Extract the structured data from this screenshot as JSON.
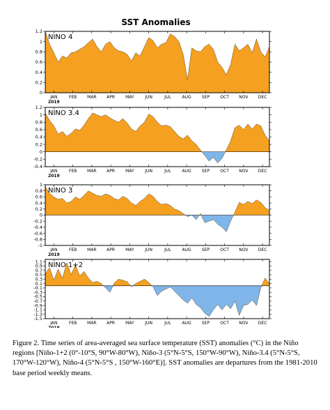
{
  "title": "SST Anomalies",
  "months": [
    "JAN",
    "FEB",
    "MAR",
    "APR",
    "MAY",
    "JUN",
    "JUL",
    "AUG",
    "SEP",
    "OCT",
    "NOV",
    "DEC"
  ],
  "year_label": "2019",
  "colors": {
    "positive": "#f5a020",
    "negative": "#7fb5e8",
    "axis": "#000000"
  },
  "caption": "Figure 2. Time series of area-averaged sea surface temperature (SST) anomalies (°C) in the Niño regions [Niño-1+2 (0°-10°S, 90°W-80°W), Niño-3 (5°N-5°S, 150°W-90°W), Niño-3.4 (5°N-5°S, 170°W-120°W), Niño-4 (5°N-5°S , 150°W-160°E)]. SST anomalies are departures from the 1981-2010 base period weekly means.",
  "chart_data": [
    {
      "type": "area",
      "name": "NINO 4",
      "ylim": [
        0,
        1.2
      ],
      "yticks": [
        0,
        0.2,
        0.4,
        0.6,
        0.8,
        1,
        1.2
      ],
      "x_weeks": [
        0,
        1,
        2,
        3,
        4,
        5,
        6,
        7,
        8,
        9,
        10,
        11,
        12,
        13,
        14,
        15,
        16,
        17,
        18,
        19,
        20,
        21,
        22,
        23,
        24,
        25,
        26,
        27,
        28,
        29,
        30,
        31,
        32,
        33,
        34,
        35,
        36,
        37,
        38,
        39,
        40,
        41,
        42,
        43,
        44,
        45,
        46,
        47,
        48,
        49,
        50,
        51,
        52
      ],
      "values": [
        1.2,
        0.95,
        0.78,
        0.6,
        0.72,
        0.68,
        0.78,
        0.8,
        0.85,
        0.9,
        0.98,
        1.05,
        0.9,
        0.8,
        0.95,
        1.0,
        0.88,
        0.82,
        0.8,
        0.75,
        0.62,
        0.78,
        0.72,
        0.9,
        1.08,
        1.02,
        0.88,
        0.95,
        0.98,
        1.15,
        1.1,
        1.0,
        0.75,
        0.25,
        0.88,
        0.82,
        0.8,
        0.9,
        0.95,
        0.85,
        0.6,
        0.5,
        0.35,
        0.55,
        0.95,
        0.82,
        0.88,
        0.95,
        0.78,
        1.05,
        0.8,
        0.7,
        0.9
      ]
    },
    {
      "type": "area",
      "name": "NINO 3.4",
      "ylim": [
        -0.4,
        1.2
      ],
      "yticks": [
        -0.4,
        -0.2,
        0,
        0.2,
        0.4,
        0.6,
        0.8,
        1,
        1.2
      ],
      "x_weeks": [
        0,
        1,
        2,
        3,
        4,
        5,
        6,
        7,
        8,
        9,
        10,
        11,
        12,
        13,
        14,
        15,
        16,
        17,
        18,
        19,
        20,
        21,
        22,
        23,
        24,
        25,
        26,
        27,
        28,
        29,
        30,
        31,
        32,
        33,
        34,
        35,
        36,
        37,
        38,
        39,
        40,
        41,
        42,
        43,
        44,
        45,
        46,
        47,
        48,
        49,
        50,
        51,
        52
      ],
      "values": [
        1.05,
        0.85,
        0.7,
        0.48,
        0.55,
        0.42,
        0.5,
        0.62,
        0.58,
        0.72,
        0.9,
        1.05,
        1.0,
        0.95,
        1.0,
        0.92,
        0.85,
        0.8,
        0.9,
        0.78,
        0.62,
        0.55,
        0.7,
        0.8,
        1.02,
        0.95,
        0.8,
        0.7,
        0.72,
        0.68,
        0.55,
        0.42,
        0.35,
        0.45,
        0.3,
        0.2,
        0.05,
        -0.1,
        -0.25,
        -0.15,
        -0.3,
        -0.18,
        0.05,
        0.3,
        0.65,
        0.72,
        0.6,
        0.75,
        0.62,
        0.75,
        0.7,
        0.45,
        0.3
      ]
    },
    {
      "type": "area",
      "name": "NINO 3",
      "ylim": [
        -1,
        1
      ],
      "yticks": [
        -1,
        -0.8,
        -0.6,
        -0.4,
        -0.2,
        0,
        0.2,
        0.4,
        0.6,
        0.8,
        1
      ],
      "x_weeks": [
        0,
        1,
        2,
        3,
        4,
        5,
        6,
        7,
        8,
        9,
        10,
        11,
        12,
        13,
        14,
        15,
        16,
        17,
        18,
        19,
        20,
        21,
        22,
        23,
        24,
        25,
        26,
        27,
        28,
        29,
        30,
        31,
        32,
        33,
        34,
        35,
        36,
        37,
        38,
        39,
        40,
        41,
        42,
        43,
        44,
        45,
        46,
        47,
        48,
        49,
        50,
        51,
        52
      ],
      "values": [
        0.95,
        0.72,
        0.6,
        0.52,
        0.55,
        0.4,
        0.45,
        0.6,
        0.52,
        0.65,
        0.8,
        0.72,
        0.65,
        0.62,
        0.7,
        0.65,
        0.55,
        0.5,
        0.62,
        0.55,
        0.4,
        0.32,
        0.45,
        0.55,
        0.7,
        0.62,
        0.45,
        0.35,
        0.38,
        0.32,
        0.2,
        0.15,
        0.05,
        -0.05,
        0.0,
        -0.15,
        0.05,
        -0.25,
        -0.2,
        -0.15,
        -0.3,
        -0.4,
        -0.55,
        -0.2,
        0.1,
        0.42,
        0.35,
        0.45,
        0.38,
        0.5,
        0.42,
        0.25,
        0.15
      ]
    },
    {
      "type": "area",
      "name": "NINO 1+2",
      "ylim": [
        -1.5,
        1.2
      ],
      "yticks": [
        -1.5,
        -1.3,
        -1.1,
        -0.9,
        -0.7,
        -0.5,
        -0.3,
        -0.1,
        0.1,
        0.3,
        0.5,
        0.7,
        0.9,
        1.1
      ],
      "x_weeks": [
        0,
        1,
        2,
        3,
        4,
        5,
        6,
        7,
        8,
        9,
        10,
        11,
        12,
        13,
        14,
        15,
        16,
        17,
        18,
        19,
        20,
        21,
        22,
        23,
        24,
        25,
        26,
        27,
        28,
        29,
        30,
        31,
        32,
        33,
        34,
        35,
        36,
        37,
        38,
        39,
        40,
        41,
        42,
        43,
        44,
        45,
        46,
        47,
        48,
        49,
        50,
        51,
        52
      ],
      "values": [
        0.55,
        0.82,
        0.25,
        0.75,
        0.35,
        1.05,
        0.5,
        0.95,
        0.45,
        0.65,
        0.35,
        0.15,
        0.2,
        0.1,
        -0.1,
        -0.3,
        0.12,
        0.3,
        0.25,
        0.18,
        -0.05,
        0.1,
        0.2,
        0.3,
        0.15,
        -0.05,
        -0.45,
        -0.25,
        -0.15,
        -0.05,
        -0.25,
        -0.45,
        -0.65,
        -0.8,
        -0.55,
        -0.85,
        -1.0,
        -1.25,
        -1.4,
        -1.1,
        -0.85,
        -1.1,
        -0.85,
        -1.05,
        -0.7,
        -1.35,
        -0.9,
        -0.85,
        -0.65,
        -0.9,
        -0.1,
        0.35,
        0.1
      ]
    }
  ]
}
